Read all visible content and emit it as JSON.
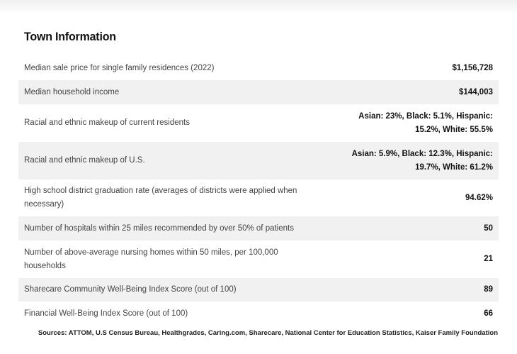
{
  "page_title": "Town Information",
  "rows": [
    {
      "label": "Median sale price for single family residences (2022)",
      "value": "$1,156,728"
    },
    {
      "label": "Median household income",
      "value": "$144,003"
    },
    {
      "label": "Racial and ethnic makeup of current residents",
      "value": "Asian: 23%, Black: 5.1%, Hispanic: 15.2%, White: 55.5%"
    },
    {
      "label": "Racial and ethnic makeup of U.S.",
      "value": "Asian: 5.9%, Black: 12.3%, Hispanic: 19.7%, White: 61.2%"
    },
    {
      "label": "High school district graduation rate (averages of districts were applied when necessary)",
      "value": "94.62%"
    },
    {
      "label": "Number of hospitals within 25 miles recommended by over 50% of patients",
      "value": "50"
    },
    {
      "label": "Number of above-average nursing homes within 50 miles, per 100,000 households",
      "value": "21"
    },
    {
      "label": "Sharecare Community Well-Being Index Score (out of 100)",
      "value": "89"
    },
    {
      "label": "Financial Well-Being Index Score (out of 100)",
      "value": "66"
    }
  ],
  "sources": "Sources: ATTOM, U.S Census Bureau, Healthgrades, Caring.com, Sharecare, National Center for Education Statistics, Kaiser Family Foundation"
}
